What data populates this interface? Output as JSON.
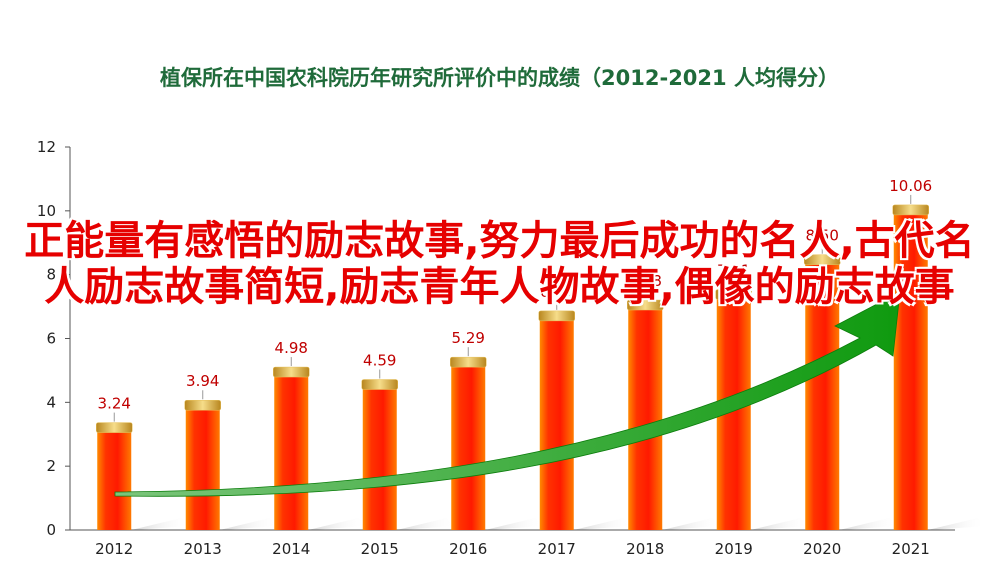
{
  "chart_data": {
    "type": "bar",
    "title": "植保所在中国农科院历年研究所评价中的成绩（2012-2021  人均得分）",
    "categories": [
      "2012",
      "2013",
      "2014",
      "2015",
      "2016",
      "2017",
      "2018",
      "2019",
      "2020",
      "2021"
    ],
    "values": [
      3.24,
      3.94,
      4.98,
      4.59,
      5.29,
      6.74,
      7.08,
      7.41,
      8.5,
      10.06
    ],
    "value_labels": [
      "3.24",
      "3.94",
      "4.98",
      "4.59",
      "5.29",
      "6.74",
      "7.08",
      "7.41",
      "8.50",
      "10.06"
    ],
    "ylim": [
      0,
      12
    ],
    "yticks": [
      0,
      2,
      4,
      6,
      8,
      10,
      12
    ],
    "xlabel": "",
    "ylabel": "",
    "grid": false,
    "legend": "none",
    "colors": {
      "bar": "#ff2a00",
      "bar_edge": "#ff9a3c",
      "cap": "#e8c15a",
      "label": "#c00000",
      "trend_arrow": "#17a317",
      "title": "#1f6b3a"
    }
  },
  "overlay_text": "正能量有感悟的励志故事,努力最后成功的名人,古代名人励志故事简短,励志青年人物故事,偶像的励志故事"
}
